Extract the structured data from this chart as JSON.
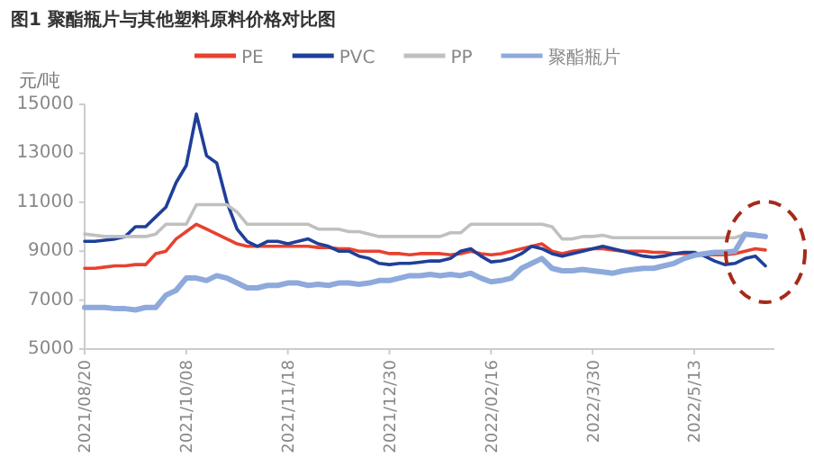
{
  "chart_data": {
    "type": "line",
    "title": "图1 聚酯瓶片与其他塑料原料价格对比图",
    "ylabel": "元/吨",
    "categories": [
      "2021/08/20",
      null,
      null,
      null,
      null,
      null,
      null,
      null,
      null,
      null,
      "2021/10/08",
      null,
      null,
      null,
      null,
      null,
      null,
      null,
      null,
      null,
      "2021/11/18",
      null,
      null,
      null,
      null,
      null,
      null,
      null,
      null,
      null,
      "2021/12/30",
      null,
      null,
      null,
      null,
      null,
      null,
      null,
      null,
      null,
      "2022/02/16",
      null,
      null,
      null,
      null,
      null,
      null,
      null,
      null,
      null,
      "2022/3/30",
      null,
      null,
      null,
      null,
      null,
      null,
      null,
      null,
      null,
      "2022/5/13",
      null,
      null,
      null,
      null,
      null,
      null,
      null
    ],
    "ylim": [
      5000,
      15000
    ],
    "yticks": [
      5000,
      7000,
      9000,
      11000,
      13000,
      15000
    ],
    "grid": false,
    "legend": "top",
    "marker": "none",
    "series": [
      {
        "name": "PE",
        "color": "#e8412f",
        "values": [
          8300,
          8300,
          8350,
          8400,
          8400,
          8450,
          8450,
          8900,
          9000,
          9500,
          9800,
          10100,
          9900,
          9700,
          9500,
          9300,
          9200,
          9200,
          9200,
          9200,
          9200,
          9200,
          9200,
          9150,
          9150,
          9100,
          9100,
          9000,
          9000,
          9000,
          8900,
          8900,
          8850,
          8900,
          8900,
          8900,
          8850,
          8900,
          9000,
          8900,
          8850,
          8900,
          9000,
          9100,
          9200,
          9300,
          9000,
          8900,
          9000,
          9050,
          9100,
          9100,
          9050,
          9000,
          9000,
          9000,
          8950,
          8950,
          8900,
          8900,
          8900,
          8850,
          8850,
          8850,
          8900,
          9000,
          9100,
          9050
        ]
      },
      {
        "name": "PVC",
        "color": "#1f3f99",
        "values": [
          9400,
          9400,
          9450,
          9500,
          9600,
          10000,
          10000,
          10400,
          10800,
          11800,
          12500,
          14600,
          12900,
          12600,
          11000,
          9900,
          9400,
          9200,
          9400,
          9400,
          9300,
          9400,
          9500,
          9300,
          9200,
          9000,
          9000,
          8800,
          8700,
          8500,
          8450,
          8500,
          8500,
          8550,
          8600,
          8600,
          8700,
          9000,
          9100,
          8800,
          8560,
          8600,
          8700,
          8900,
          9200,
          9100,
          8900,
          8800,
          8900,
          9000,
          9100,
          9200,
          9100,
          9000,
          8900,
          8800,
          8750,
          8800,
          8900,
          8950,
          8950,
          8800,
          8600,
          8450,
          8500,
          8700,
          8800,
          8400
        ]
      },
      {
        "name": "PP",
        "color": "#c0c0c0",
        "values": [
          9700,
          9650,
          9600,
          9600,
          9600,
          9600,
          9600,
          9700,
          10100,
          10100,
          10100,
          10900,
          10900,
          10900,
          10900,
          10600,
          10100,
          10100,
          10100,
          10100,
          10100,
          10100,
          10100,
          9900,
          9900,
          9900,
          9800,
          9800,
          9700,
          9600,
          9600,
          9600,
          9600,
          9600,
          9600,
          9600,
          9750,
          9750,
          10100,
          10100,
          10100,
          10100,
          10100,
          10100,
          10100,
          10100,
          10000,
          9500,
          9500,
          9600,
          9600,
          9650,
          9550,
          9550,
          9550,
          9550,
          9550,
          9550,
          9550,
          9550,
          9550,
          9550,
          9550,
          9550,
          9550,
          9700,
          9700,
          9600
        ]
      },
      {
        "name": "聚酯瓶片",
        "color": "#8ea9db",
        "values": [
          6700,
          6700,
          6700,
          6650,
          6650,
          6600,
          6700,
          6700,
          7200,
          7400,
          7900,
          7900,
          7800,
          8000,
          7900,
          7700,
          7500,
          7500,
          7600,
          7600,
          7700,
          7700,
          7600,
          7650,
          7600,
          7700,
          7700,
          7650,
          7700,
          7800,
          7800,
          7900,
          8000,
          8000,
          8050,
          8000,
          8050,
          8000,
          8100,
          7900,
          7750,
          7800,
          7900,
          8300,
          8500,
          8700,
          8300,
          8200,
          8200,
          8250,
          8200,
          8150,
          8100,
          8200,
          8250,
          8300,
          8300,
          8400,
          8500,
          8700,
          8830,
          8900,
          8950,
          8950,
          9000,
          9700,
          9650,
          9600
        ]
      }
    ]
  }
}
